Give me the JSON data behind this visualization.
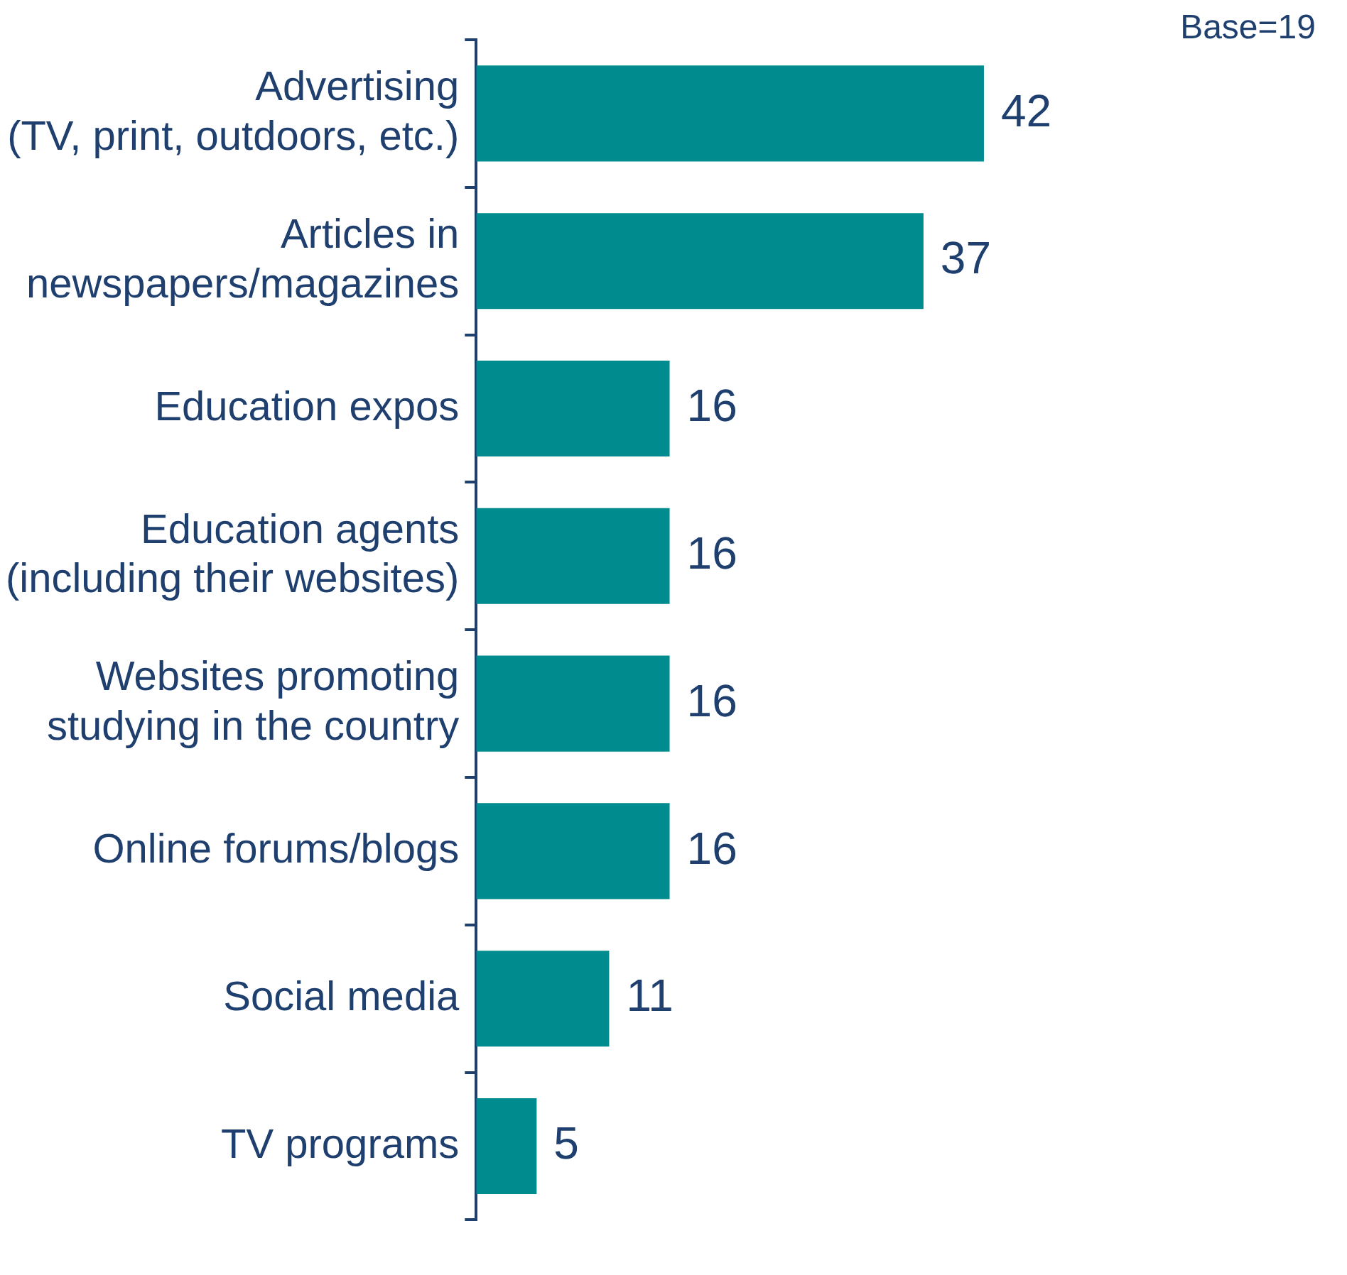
{
  "chart_data": {
    "type": "bar",
    "orientation": "horizontal",
    "categories": [
      "Advertising (TV, print, outdoors, etc.)",
      "Articles in newspapers/magazines",
      "Education expos",
      "Education agents (including their websites)",
      "Websites promoting studying in the country",
      "Online forums/blogs",
      "Social media",
      "TV programs"
    ],
    "values": [
      42,
      37,
      16,
      16,
      16,
      16,
      11,
      5
    ],
    "color": "#008b8f",
    "data_labels": true,
    "grid": false,
    "legend": false,
    "tick_labels": "y",
    "annotations": [
      "Base=19"
    ]
  }
}
